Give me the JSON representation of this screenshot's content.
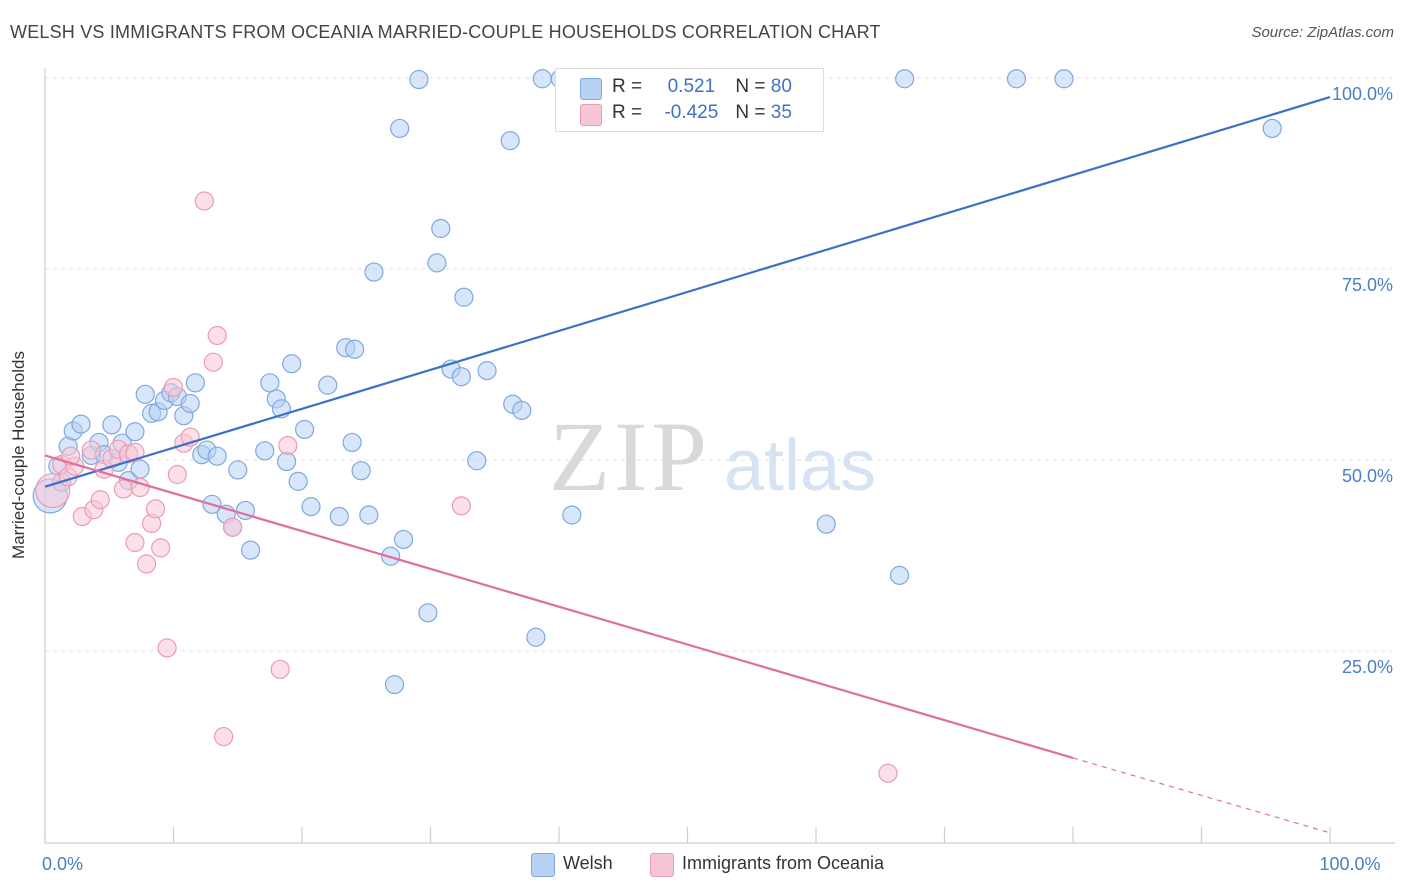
{
  "title": "WELSH VS IMMIGRANTS FROM OCEANIA MARRIED-COUPLE HOUSEHOLDS CORRELATION CHART",
  "source": "Source: ZipAtlas.com",
  "watermark": {
    "zip": "ZIP",
    "atlas": "atlas"
  },
  "colors": {
    "welsh_fill": "#b7d1f3",
    "welsh_stroke": "#7fa9e0",
    "welsh_line": "#3a72c8",
    "oceania_fill": "#f7c6d5",
    "oceania_stroke": "#ee9ab6",
    "oceania_line": "#e0709a",
    "axis_text": "#4a7fc7"
  },
  "legend": {
    "welsh": {
      "r_label": "R = ",
      "r_value": "0.521",
      "n_label": "N = ",
      "n_value": "80"
    },
    "oceania": {
      "r_label": "R = ",
      "r_value": "-0.425",
      "n_label": "N = ",
      "n_value": "35"
    }
  },
  "chart_data": {
    "type": "scatter",
    "title": "WELSH VS IMMIGRANTS FROM OCEANIA MARRIED-COUPLE HOUSEHOLDS CORRELATION CHART",
    "xlabel": "",
    "ylabel": "Married-couple Households",
    "xlim": [
      0,
      100
    ],
    "ylim": [
      0,
      100
    ],
    "x_tick_labels": [
      {
        "value": 0,
        "label": "0.0%"
      },
      {
        "value": 100,
        "label": "100.0%"
      }
    ],
    "y_tick_labels": [
      {
        "value": 25,
        "label": "25.0%"
      },
      {
        "value": 50,
        "label": "50.0%"
      },
      {
        "value": 75,
        "label": "75.0%"
      },
      {
        "value": 100,
        "label": "100.0%"
      }
    ],
    "grid": true,
    "legend_position": "top-center",
    "series": [
      {
        "name": "Welsh",
        "trend": {
          "x": [
            0,
            100
          ],
          "y": [
            46.5,
            97.5
          ]
        },
        "points": [
          {
            "x": 0.4,
            "y": 45.3,
            "big": true
          },
          {
            "x": 1.0,
            "y": 49.2
          },
          {
            "x": 1.3,
            "y": 47.1
          },
          {
            "x": 1.8,
            "y": 51.8
          },
          {
            "x": 2.2,
            "y": 53.8
          },
          {
            "x": 2.8,
            "y": 54.7
          },
          {
            "x": 3.6,
            "y": 50.6
          },
          {
            "x": 4.2,
            "y": 52.3
          },
          {
            "x": 4.6,
            "y": 50.7
          },
          {
            "x": 5.2,
            "y": 54.6
          },
          {
            "x": 5.7,
            "y": 49.7
          },
          {
            "x": 6.0,
            "y": 52.2
          },
          {
            "x": 6.5,
            "y": 47.3
          },
          {
            "x": 7.0,
            "y": 53.7
          },
          {
            "x": 7.4,
            "y": 48.8
          },
          {
            "x": 7.8,
            "y": 58.6
          },
          {
            "x": 8.3,
            "y": 56.1
          },
          {
            "x": 8.8,
            "y": 56.3
          },
          {
            "x": 9.3,
            "y": 57.8
          },
          {
            "x": 9.8,
            "y": 58.8
          },
          {
            "x": 10.3,
            "y": 58.3
          },
          {
            "x": 10.8,
            "y": 55.8
          },
          {
            "x": 11.3,
            "y": 57.4
          },
          {
            "x": 11.7,
            "y": 60.1
          },
          {
            "x": 12.2,
            "y": 50.7
          },
          {
            "x": 12.6,
            "y": 51.3
          },
          {
            "x": 13.0,
            "y": 44.2
          },
          {
            "x": 13.4,
            "y": 50.5
          },
          {
            "x": 14.1,
            "y": 42.9
          },
          {
            "x": 14.6,
            "y": 41.2
          },
          {
            "x": 15.0,
            "y": 48.7
          },
          {
            "x": 15.6,
            "y": 43.4
          },
          {
            "x": 16.0,
            "y": 38.2
          },
          {
            "x": 17.1,
            "y": 51.2
          },
          {
            "x": 17.5,
            "y": 60.1
          },
          {
            "x": 18.0,
            "y": 58.0
          },
          {
            "x": 18.4,
            "y": 56.7
          },
          {
            "x": 18.8,
            "y": 49.8
          },
          {
            "x": 19.2,
            "y": 62.6
          },
          {
            "x": 19.7,
            "y": 47.2
          },
          {
            "x": 20.2,
            "y": 54.0
          },
          {
            "x": 20.7,
            "y": 43.9
          },
          {
            "x": 22.0,
            "y": 59.8
          },
          {
            "x": 22.9,
            "y": 42.6
          },
          {
            "x": 23.9,
            "y": 52.3
          },
          {
            "x": 23.4,
            "y": 64.7
          },
          {
            "x": 24.1,
            "y": 64.5
          },
          {
            "x": 24.6,
            "y": 48.6
          },
          {
            "x": 25.2,
            "y": 42.8
          },
          {
            "x": 25.6,
            "y": 74.6
          },
          {
            "x": 26.9,
            "y": 37.4
          },
          {
            "x": 27.2,
            "y": 20.6
          },
          {
            "x": 27.9,
            "y": 39.6
          },
          {
            "x": 27.6,
            "y": 93.4
          },
          {
            "x": 29.1,
            "y": 99.8
          },
          {
            "x": 29.8,
            "y": 30.0
          },
          {
            "x": 30.5,
            "y": 75.8
          },
          {
            "x": 30.8,
            "y": 80.3
          },
          {
            "x": 31.6,
            "y": 61.9
          },
          {
            "x": 32.4,
            "y": 60.9
          },
          {
            "x": 32.6,
            "y": 71.3
          },
          {
            "x": 33.6,
            "y": 49.9
          },
          {
            "x": 34.4,
            "y": 61.7
          },
          {
            "x": 36.2,
            "y": 91.8
          },
          {
            "x": 36.4,
            "y": 57.3
          },
          {
            "x": 37.1,
            "y": 56.5
          },
          {
            "x": 38.2,
            "y": 26.8
          },
          {
            "x": 38.7,
            "y": 99.9
          },
          {
            "x": 40.1,
            "y": 99.9
          },
          {
            "x": 41.0,
            "y": 42.8
          },
          {
            "x": 45.0,
            "y": 99.9
          },
          {
            "x": 47.6,
            "y": 99.9
          },
          {
            "x": 54.0,
            "y": 99.9
          },
          {
            "x": 60.8,
            "y": 41.6
          },
          {
            "x": 66.5,
            "y": 34.9
          },
          {
            "x": 66.9,
            "y": 99.9
          },
          {
            "x": 75.6,
            "y": 99.9
          },
          {
            "x": 79.3,
            "y": 99.9
          },
          {
            "x": 95.5,
            "y": 93.4
          },
          {
            "x": 57.6,
            "y": 99.9
          }
        ]
      },
      {
        "name": "Immigrants from Oceania",
        "trend": {
          "x": [
            0,
            80
          ],
          "y": [
            50.6,
            11.0
          ]
        },
        "trend_dashed": {
          "x": [
            80,
            100
          ],
          "y": [
            11.0,
            1.2
          ]
        },
        "points": [
          {
            "x": 0.6,
            "y": 46.0,
            "big": true
          },
          {
            "x": 1.3,
            "y": 49.4
          },
          {
            "x": 1.8,
            "y": 47.8
          },
          {
            "x": 2.3,
            "y": 49.2
          },
          {
            "x": 2.9,
            "y": 42.6
          },
          {
            "x": 3.6,
            "y": 51.3
          },
          {
            "x": 3.8,
            "y": 43.5
          },
          {
            "x": 4.3,
            "y": 44.8
          },
          {
            "x": 4.6,
            "y": 48.8
          },
          {
            "x": 5.2,
            "y": 50.2
          },
          {
            "x": 5.7,
            "y": 51.4
          },
          {
            "x": 6.1,
            "y": 46.2
          },
          {
            "x": 6.5,
            "y": 50.8
          },
          {
            "x": 7.0,
            "y": 39.2
          },
          {
            "x": 7.4,
            "y": 46.4
          },
          {
            "x": 7.9,
            "y": 36.4
          },
          {
            "x": 8.3,
            "y": 41.7
          },
          {
            "x": 8.6,
            "y": 43.6
          },
          {
            "x": 9.0,
            "y": 38.5
          },
          {
            "x": 9.5,
            "y": 25.4
          },
          {
            "x": 10.0,
            "y": 59.5
          },
          {
            "x": 10.3,
            "y": 48.1
          },
          {
            "x": 10.8,
            "y": 52.2
          },
          {
            "x": 11.3,
            "y": 53.0
          },
          {
            "x": 12.4,
            "y": 83.9
          },
          {
            "x": 13.1,
            "y": 62.8
          },
          {
            "x": 13.4,
            "y": 66.3
          },
          {
            "x": 13.9,
            "y": 13.8
          },
          {
            "x": 14.6,
            "y": 41.2
          },
          {
            "x": 18.3,
            "y": 22.6
          },
          {
            "x": 18.9,
            "y": 51.9
          },
          {
            "x": 32.4,
            "y": 44.0
          },
          {
            "x": 65.6,
            "y": 9.0
          },
          {
            "x": 7.0,
            "y": 51.0
          },
          {
            "x": 2.0,
            "y": 50.5
          }
        ]
      }
    ]
  },
  "bottom_legend": {
    "welsh": "Welsh",
    "oceania": "Immigrants from Oceania"
  }
}
